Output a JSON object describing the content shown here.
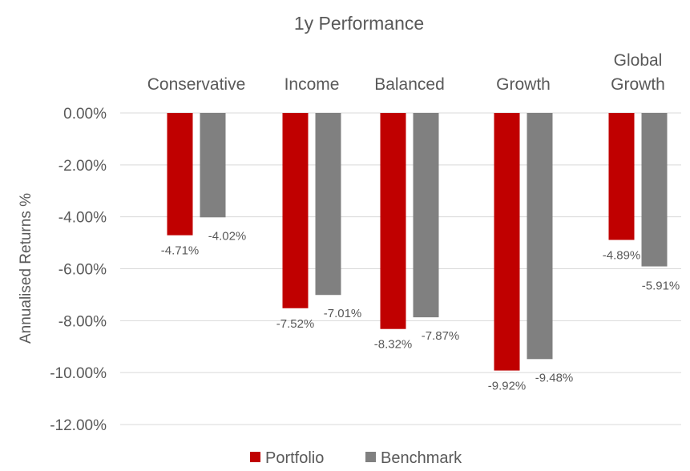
{
  "chart_data": {
    "type": "bar",
    "title": "1y Performance",
    "ylabel": "Annualised Returns %",
    "xlabel": "",
    "categories": [
      [
        "Conservative"
      ],
      [
        "Income"
      ],
      [
        "Balanced"
      ],
      [
        "Growth"
      ],
      [
        "Global",
        "Growth"
      ]
    ],
    "series": [
      {
        "name": "Portfolio",
        "color": "#C00000",
        "values": [
          -4.71,
          -7.52,
          -8.32,
          -9.92,
          -4.89
        ],
        "labels": [
          "-4.71%",
          "-7.52%",
          "-8.32%",
          "-9.92%",
          "-4.89%"
        ]
      },
      {
        "name": "Benchmark",
        "color": "#808080",
        "values": [
          -4.02,
          -7.01,
          -7.87,
          -9.48,
          -5.91
        ],
        "labels": [
          "-4.02%",
          "-7.01%",
          "-7.87%",
          "-9.48%",
          "-5.91%"
        ]
      }
    ],
    "ylim": [
      -12,
      0
    ],
    "yticks": [
      0,
      -2,
      -4,
      -6,
      -8,
      -10,
      -12
    ],
    "ytick_labels": [
      "0.00%",
      "-2.00%",
      "-4.00%",
      "-6.00%",
      "-8.00%",
      "-10.00%",
      "-12.00%"
    ],
    "category_axis_position": "top",
    "grid": true,
    "legend": "bottom"
  }
}
